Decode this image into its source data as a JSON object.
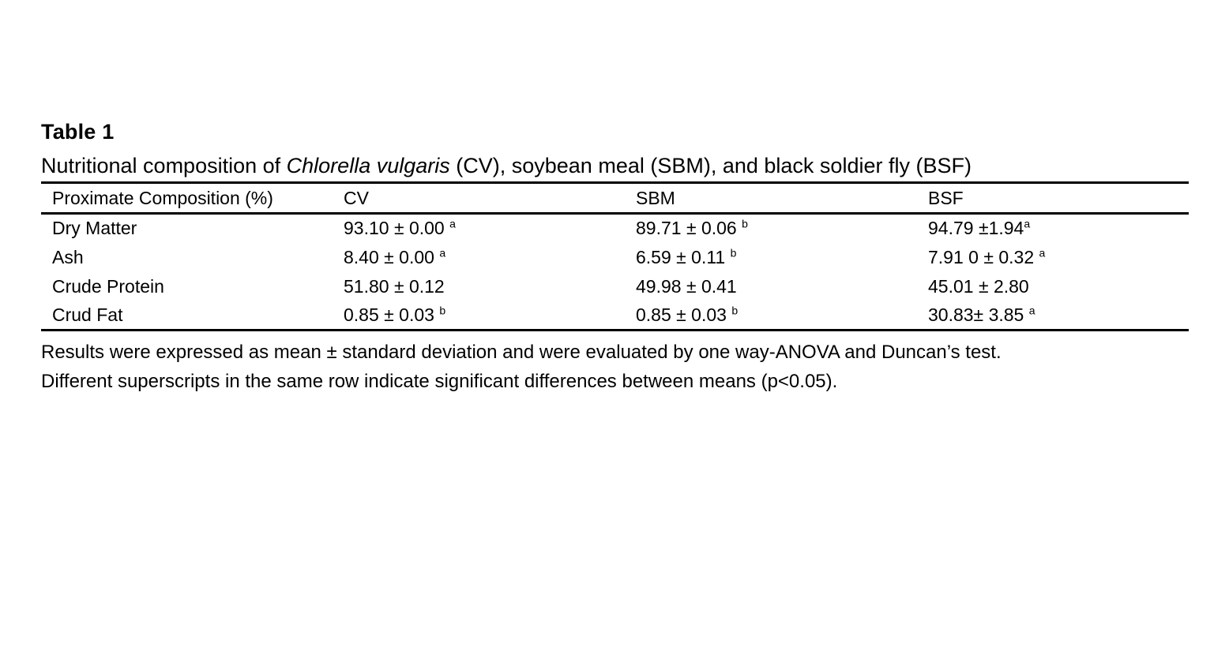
{
  "table": {
    "label": "Table 1",
    "caption": {
      "prefix": "Nutritional composition of ",
      "species": "Chlorella vulgaris",
      "suffix": " (CV), soybean meal (SBM), and black soldier fly (BSF)"
    },
    "columns": [
      "Proximate Composition (%)",
      "CV",
      "SBM",
      "BSF"
    ],
    "rows": [
      {
        "label": "Dry Matter",
        "cells": [
          {
            "v": "93.10 ± 0.00 ",
            "sup": "a"
          },
          {
            "v": "89.71 ± 0.06 ",
            "sup": "b"
          },
          {
            "v": "94.79 ±1.94",
            "sup": "a"
          }
        ]
      },
      {
        "label": "Ash",
        "cells": [
          {
            "v": "8.40 ± 0.00 ",
            "sup": "a"
          },
          {
            "v": "6.59 ± 0.11 ",
            "sup": "b"
          },
          {
            "v": "7.91 0 ± 0.32 ",
            "sup": "a"
          }
        ]
      },
      {
        "label": "Crude Protein",
        "cells": [
          {
            "v": "51.80 ± 0.12"
          },
          {
            "v": "49.98 ± 0.41"
          },
          {
            "v": "45.01 ± 2.80"
          }
        ]
      },
      {
        "label": "Crud Fat",
        "cells": [
          {
            "v": "0.85 ± 0.03 ",
            "sup": "b"
          },
          {
            "v": "0.85 ± 0.03 ",
            "sup": "b"
          },
          {
            "v": "30.83± 3.85 ",
            "sup": "a"
          }
        ]
      }
    ],
    "notes": [
      "Results were expressed as mean ± standard deviation and were evaluated by one way-ANOVA and Duncan’s test.",
      "Different superscripts in the same row indicate significant differences between means (p<0.05)."
    ]
  }
}
